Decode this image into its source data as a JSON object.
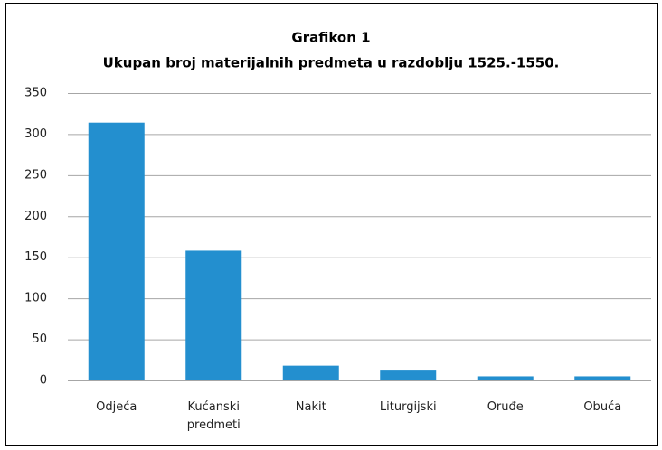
{
  "chart_data": {
    "type": "bar",
    "title": "Grafikon 1",
    "subtitle": "Ukupan broj materijalnih predmeta u razdoblju 1525.-1550.",
    "categories": [
      "Odjeća",
      "Kućanski predmeti",
      "Nakit",
      "Liturgijski",
      "Oruđe",
      "Obuća"
    ],
    "values": [
      314,
      158,
      18,
      12,
      5,
      5
    ],
    "color": "#238fcf",
    "ylim": [
      0,
      350
    ],
    "yticks": [
      0,
      50,
      100,
      150,
      200,
      250,
      300,
      350
    ],
    "grid": true
  }
}
